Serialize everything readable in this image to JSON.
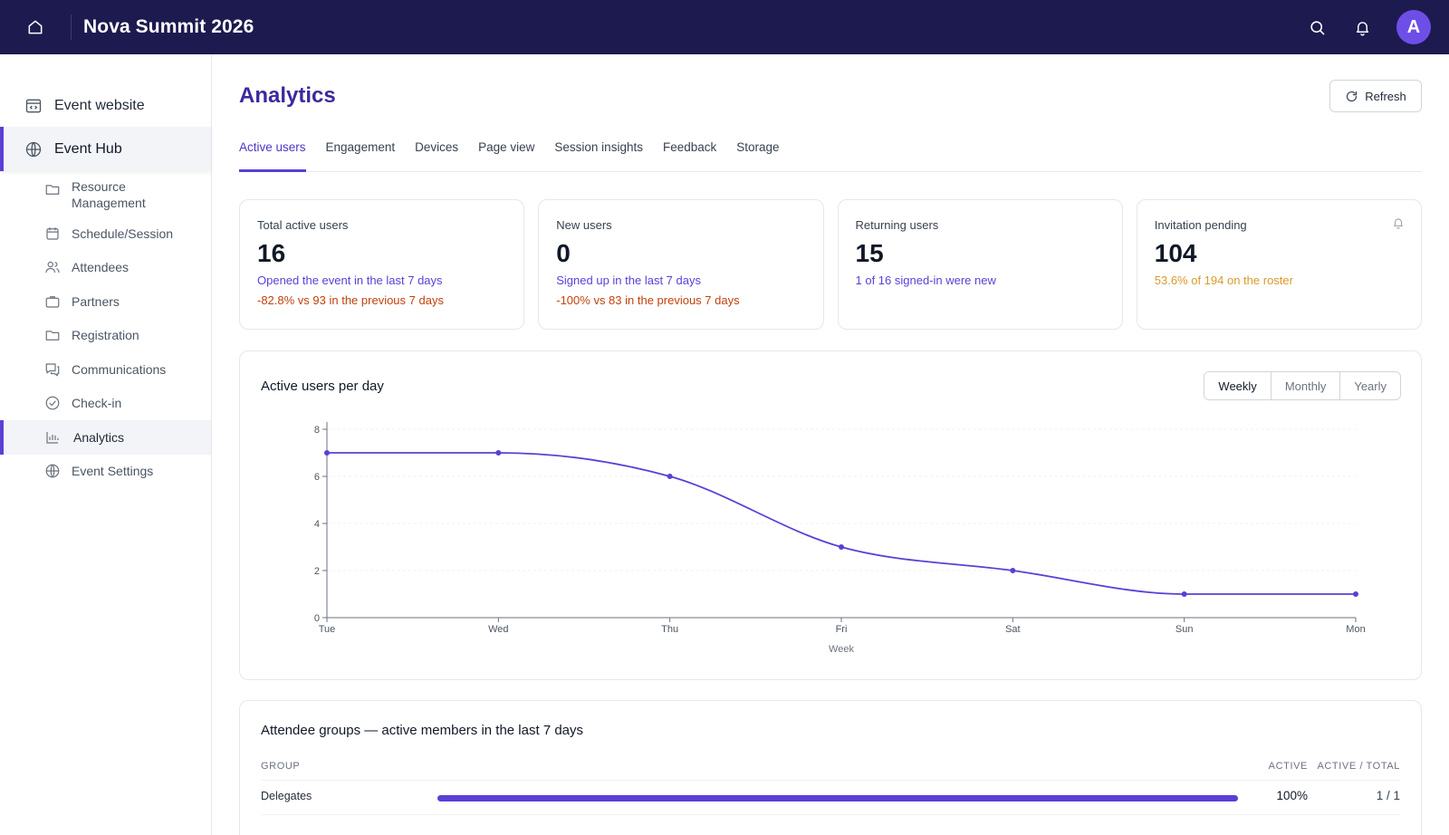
{
  "header": {
    "title": "Nova Summit 2026",
    "avatar_initial": "A"
  },
  "sidebar": {
    "event_website": "Event website",
    "event_hub": "Event Hub",
    "items": [
      {
        "label": "Resource Management",
        "icon": "folder-icon"
      },
      {
        "label": "Schedule/Session",
        "icon": "calendar-icon"
      },
      {
        "label": "Attendees",
        "icon": "users-icon"
      },
      {
        "label": "Partners",
        "icon": "briefcase-icon"
      },
      {
        "label": "Registration",
        "icon": "folder-icon"
      },
      {
        "label": "Communications",
        "icon": "chat-icon"
      },
      {
        "label": "Check-in",
        "icon": "check-circle-icon"
      },
      {
        "label": "Analytics",
        "icon": "bar-chart-icon"
      },
      {
        "label": "Event Settings",
        "icon": "globe-icon"
      }
    ]
  },
  "page": {
    "title": "Analytics",
    "refresh_label": "Refresh"
  },
  "tabs": [
    "Active users",
    "Engagement",
    "Devices",
    "Page view",
    "Session insights",
    "Feedback",
    "Storage"
  ],
  "cards": [
    {
      "label": "Total active users",
      "value": "16",
      "sub1": "Opened the event in the last 7 days",
      "sub2": "-82.8% vs 93 in the previous 7 days"
    },
    {
      "label": "New users",
      "value": "0",
      "sub1": "Signed up in the last 7 days",
      "sub2": "-100% vs 83 in the previous 7 days"
    },
    {
      "label": "Returning users",
      "value": "15",
      "sub1": "1 of 16 signed-in were new"
    },
    {
      "label": "Invitation pending",
      "value": "104",
      "sub1": "53.6% of 194 on the roster"
    }
  ],
  "chart_panel": {
    "title": "Active users per day",
    "ranges": [
      "Weekly",
      "Monthly",
      "Yearly"
    ],
    "selected_range": "Weekly"
  },
  "chart_data": {
    "type": "line",
    "x": [
      "Tue",
      "Wed",
      "Thu",
      "Fri",
      "Sat",
      "Sun",
      "Mon"
    ],
    "series": [
      {
        "values": [
          7,
          7,
          6,
          3,
          2,
          1,
          1
        ]
      }
    ],
    "xlabel": "Week",
    "ylabel": "",
    "ylim": [
      0,
      8
    ],
    "yticks": [
      0,
      2,
      4,
      6,
      8
    ],
    "grid": true,
    "color": "#5b3fd6"
  },
  "groups": {
    "title": "Attendee groups — active members in the last 7 days",
    "columns": {
      "group": "GROUP",
      "active": "ACTIVE",
      "ratio": "ACTIVE / TOTAL"
    },
    "rows": [
      {
        "name": "Delegates",
        "active_pct": "100%",
        "ratio": "1 / 1",
        "fill": 1.0
      }
    ]
  },
  "colors": {
    "header_bg": "#1d1a4f",
    "accent": "#5b3fd6",
    "negative": "#c2410c",
    "warning": "#d99a2b"
  }
}
